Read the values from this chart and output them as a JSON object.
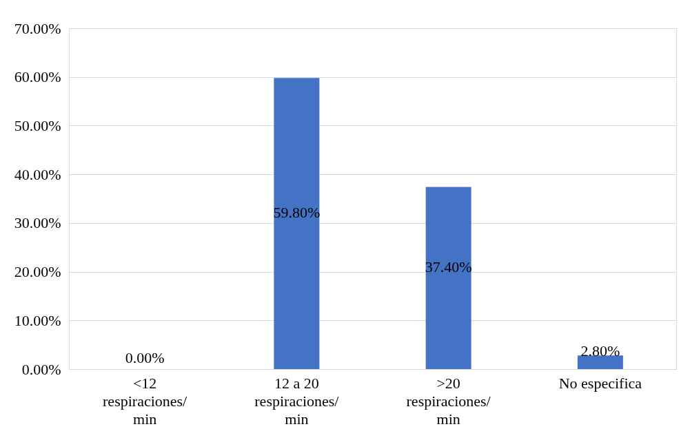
{
  "chart_data": {
    "type": "bar",
    "categories": [
      "<12\nrespiraciones/\nmin",
      "12 a 20\nrespiraciones/\nmin",
      ">20\nrespiraciones/\nmin",
      "No especifica"
    ],
    "values": [
      0,
      59.8,
      37.4,
      2.8
    ],
    "value_labels": [
      "0.00%",
      "59.80%",
      "37.40%",
      "2.80%"
    ],
    "color": "#4472c4",
    "ylim": [
      0,
      70
    ],
    "yticks": [
      {
        "value": 0,
        "label": "0.00%"
      },
      {
        "value": 10,
        "label": "10.00%"
      },
      {
        "value": 20,
        "label": "20.00%"
      },
      {
        "value": 30,
        "label": "30.00%"
      },
      {
        "value": 40,
        "label": "40.00%"
      },
      {
        "value": 50,
        "label": "50.00%"
      },
      {
        "value": 60,
        "label": "60.00%"
      },
      {
        "value": 70,
        "label": "70.00%"
      }
    ],
    "grid": "y"
  }
}
